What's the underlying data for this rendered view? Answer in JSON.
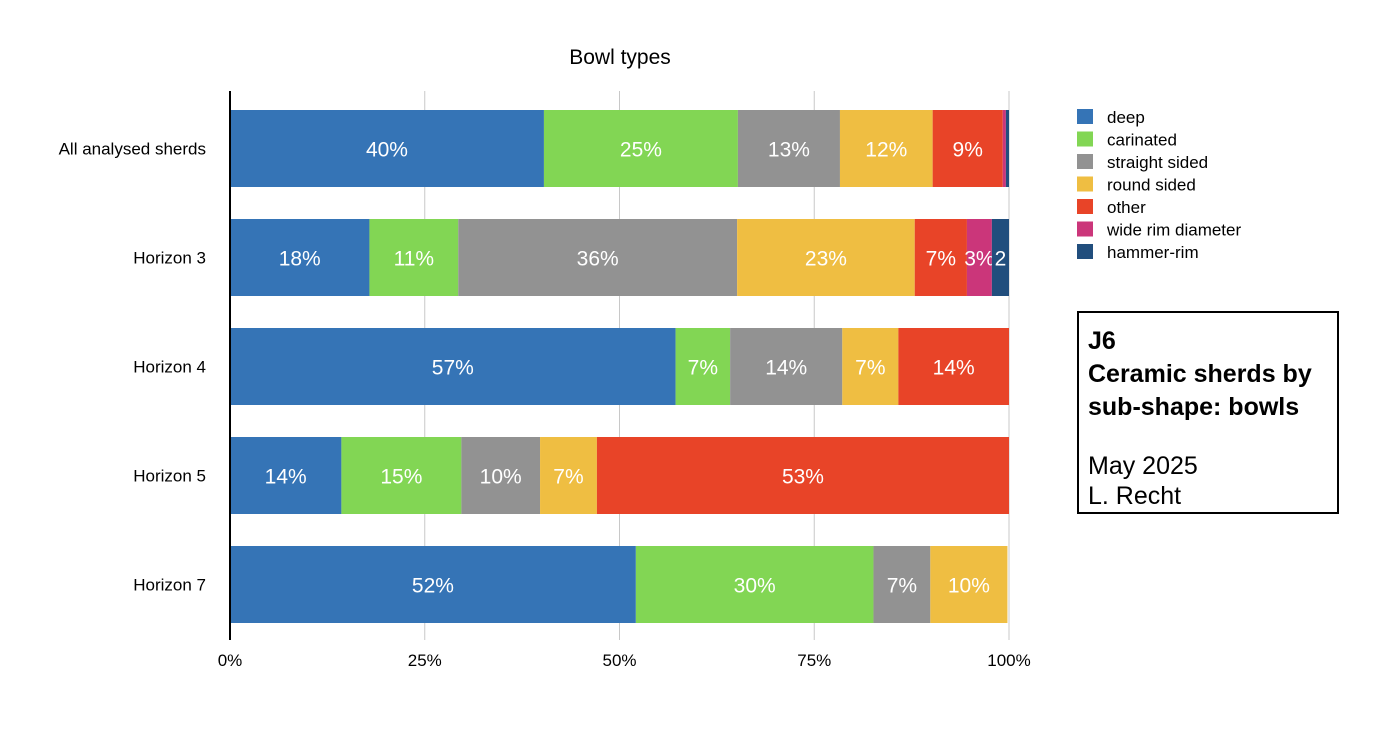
{
  "chart_data": {
    "type": "bar",
    "orientation": "horizontal",
    "stacked": "percent",
    "title": "Bowl types",
    "categories": [
      "All analysed sherds",
      "Horizon 3",
      "Horizon 4",
      "Horizon 5",
      "Horizon 7"
    ],
    "x_ticks": [
      "0%",
      "25%",
      "50%",
      "75%",
      "100%"
    ],
    "xlim": [
      0,
      100
    ],
    "grid": true,
    "legend_position": "right",
    "series": [
      {
        "name": "deep",
        "color": "#3574b6",
        "values": [
          40.3,
          17.9,
          57.2,
          14.3,
          52.1
        ],
        "labels": [
          "40%",
          "18%",
          "57%",
          "14%",
          "52%"
        ]
      },
      {
        "name": "carinated",
        "color": "#82d654",
        "values": [
          24.9,
          11.4,
          7.0,
          15.4,
          30.5
        ],
        "labels": [
          "25%",
          "11%",
          "7%",
          "15%",
          "30%"
        ]
      },
      {
        "name": "straight sided",
        "color": "#929292",
        "values": [
          13.1,
          35.8,
          14.4,
          10.1,
          7.3
        ],
        "labels": [
          "13%",
          "36%",
          "14%",
          "10%",
          "7%"
        ]
      },
      {
        "name": "round sided",
        "color": "#efbe42",
        "values": [
          11.9,
          22.8,
          7.2,
          7.3,
          9.9
        ],
        "labels": [
          "12%",
          "23%",
          "7%",
          "7%",
          "10%"
        ]
      },
      {
        "name": "other",
        "color": "#e84428",
        "values": [
          9.0,
          6.7,
          14.2,
          52.9,
          0
        ],
        "labels": [
          "9%",
          "7%",
          "14%",
          "53%",
          ""
        ]
      },
      {
        "name": "wide rim diameter",
        "color": "#cb367a",
        "values": [
          0.4,
          3.2,
          0,
          0,
          0
        ],
        "labels": [
          "",
          "3%",
          "",
          "",
          ""
        ]
      },
      {
        "name": "hammer-rim",
        "color": "#214e7d",
        "values": [
          0.4,
          2.2,
          0,
          0,
          0
        ],
        "labels": [
          "",
          "2",
          "",
          "",
          ""
        ]
      }
    ]
  },
  "info_box": {
    "code": "J6",
    "title_line1": "Ceramic sherds by",
    "title_line2": "sub-shape: bowls",
    "date": "May 2025",
    "author": "L. Recht"
  }
}
